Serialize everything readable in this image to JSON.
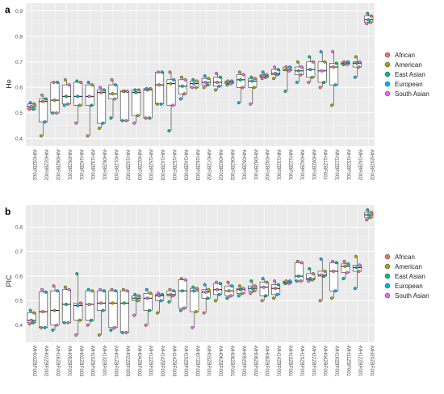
{
  "chart_data": [
    {
      "panel": "a",
      "type": "boxplot",
      "ylabel": "He",
      "ylim": [
        0.37,
        0.93
      ],
      "yticks": [
        0.4,
        0.5,
        0.6,
        0.7,
        0.8,
        0.9
      ],
      "grid": true,
      "legend_position": "right",
      "categories": [
        "MH03ZBF002",
        "MH02ZBF002",
        "MH08ZBF002",
        "MH05ZBF001",
        "MH14ZBF001",
        "MH13ZBF001",
        "MH06ZBF001",
        "MH01ZBF003",
        "MH10ZBF002",
        "MH02ZBF003",
        "MH15ZBF003",
        "MH14ZBF003",
        "MH15ZBF003",
        "MH14ZBF003",
        "MH16ZBF003",
        "MH07ZBF002",
        "MH09ZBF002",
        "MH06ZBF002",
        "MH05ZBF001",
        "MH08ZBF001",
        "MH03ZBF002",
        "MH13ZBF001",
        "MH12ZBF001",
        "MH04ZBF001",
        "MH09ZBF001",
        "MH11ZBF001",
        "MH12ZBF001",
        "MH15ZBF001",
        "MH16ZBF002",
        "MH20ZBF002"
      ],
      "boxes": [
        {
          "min": 0.515,
          "q1": 0.515,
          "median": 0.525,
          "q3": 0.535,
          "max": 0.54
        },
        {
          "min": 0.41,
          "q1": 0.465,
          "median": 0.545,
          "q3": 0.555,
          "max": 0.57
        },
        {
          "min": 0.5,
          "q1": 0.5,
          "median": 0.55,
          "q3": 0.62,
          "max": 0.62
        },
        {
          "min": 0.53,
          "q1": 0.535,
          "median": 0.565,
          "q3": 0.61,
          "max": 0.63
        },
        {
          "min": 0.46,
          "q1": 0.53,
          "median": 0.565,
          "q3": 0.62,
          "max": 0.625
        },
        {
          "min": 0.41,
          "q1": 0.53,
          "median": 0.565,
          "q3": 0.61,
          "max": 0.62
        },
        {
          "min": 0.44,
          "q1": 0.46,
          "median": 0.58,
          "q3": 0.59,
          "max": 0.6
        },
        {
          "min": 0.48,
          "q1": 0.555,
          "median": 0.575,
          "q3": 0.61,
          "max": 0.63
        },
        {
          "min": 0.47,
          "q1": 0.47,
          "median": 0.585,
          "q3": 0.585,
          "max": 0.585
        },
        {
          "min": 0.46,
          "q1": 0.49,
          "median": 0.58,
          "q3": 0.59,
          "max": 0.59
        },
        {
          "min": 0.48,
          "q1": 0.48,
          "median": 0.59,
          "q3": 0.595,
          "max": 0.595
        },
        {
          "min": 0.535,
          "q1": 0.535,
          "median": 0.61,
          "q3": 0.66,
          "max": 0.66
        },
        {
          "min": 0.43,
          "q1": 0.53,
          "median": 0.615,
          "q3": 0.63,
          "max": 0.66
        },
        {
          "min": 0.555,
          "q1": 0.575,
          "median": 0.605,
          "q3": 0.63,
          "max": 0.64
        },
        {
          "min": 0.6,
          "q1": 0.6,
          "median": 0.615,
          "q3": 0.625,
          "max": 0.63
        },
        {
          "min": 0.6,
          "q1": 0.61,
          "median": 0.62,
          "q3": 0.635,
          "max": 0.645
        },
        {
          "min": 0.59,
          "q1": 0.605,
          "median": 0.62,
          "q3": 0.64,
          "max": 0.655
        },
        {
          "min": 0.61,
          "q1": 0.615,
          "median": 0.62,
          "q3": 0.625,
          "max": 0.625
        },
        {
          "min": 0.54,
          "q1": 0.6,
          "median": 0.63,
          "q3": 0.65,
          "max": 0.66
        },
        {
          "min": 0.535,
          "q1": 0.6,
          "median": 0.625,
          "q3": 0.635,
          "max": 0.64
        },
        {
          "min": 0.635,
          "q1": 0.64,
          "median": 0.645,
          "q3": 0.65,
          "max": 0.66
        },
        {
          "min": 0.635,
          "q1": 0.65,
          "median": 0.655,
          "q3": 0.67,
          "max": 0.68
        },
        {
          "min": 0.585,
          "q1": 0.665,
          "median": 0.67,
          "q3": 0.68,
          "max": 0.68
        },
        {
          "min": 0.62,
          "q1": 0.65,
          "median": 0.665,
          "q3": 0.68,
          "max": 0.7
        },
        {
          "min": 0.62,
          "q1": 0.64,
          "median": 0.67,
          "q3": 0.7,
          "max": 0.72
        },
        {
          "min": 0.6,
          "q1": 0.62,
          "median": 0.665,
          "q3": 0.7,
          "max": 0.74
        },
        {
          "min": 0.53,
          "q1": 0.61,
          "median": 0.68,
          "q3": 0.695,
          "max": 0.74
        },
        {
          "min": 0.69,
          "q1": 0.69,
          "median": 0.695,
          "q3": 0.7,
          "max": 0.7
        },
        {
          "min": 0.64,
          "q1": 0.68,
          "median": 0.695,
          "q3": 0.7,
          "max": 0.72
        },
        {
          "min": 0.85,
          "q1": 0.855,
          "median": 0.865,
          "q3": 0.88,
          "max": 0.89
        }
      ]
    },
    {
      "panel": "b",
      "type": "boxplot",
      "ylabel": "PIC",
      "ylim": [
        0.33,
        0.89
      ],
      "yticks": [
        0.4,
        0.5,
        0.6,
        0.7,
        0.8
      ],
      "grid": true,
      "legend_position": "right",
      "categories": [
        "MH03ZBF002",
        "MH02ZBF002",
        "MH16ZBF002",
        "MH05ZBF001",
        "MH02ZBF003",
        "MH10ZBF002",
        "MH13ZBF001",
        "MH01ZBF003",
        "MH02ZBF003",
        "MH04ZBF002",
        "MH12ZBF001",
        "MH14ZBF003",
        "MH14ZBF003",
        "MH15ZBF003",
        "MH07ZBF002",
        "MH03ZBF001",
        "MH06ZBF002",
        "MH08ZBF001",
        "MH09ZBF002",
        "MH08ZBF002",
        "MH08ZBF002",
        "MH14ZBF001",
        "MH13ZBF001",
        "MH15ZBF001",
        "MH22ZBF001",
        "MH04ZBF001",
        "MH16ZBF001",
        "MH11ZBF001",
        "MH12ZBF001",
        "MH20ZBF001"
      ],
      "boxes": [
        {
          "min": 0.405,
          "q1": 0.41,
          "median": 0.42,
          "q3": 0.45,
          "max": 0.46
        },
        {
          "min": 0.39,
          "q1": 0.39,
          "median": 0.455,
          "q3": 0.535,
          "max": 0.545
        },
        {
          "min": 0.38,
          "q1": 0.4,
          "median": 0.46,
          "q3": 0.54,
          "max": 0.56
        },
        {
          "min": 0.41,
          "q1": 0.41,
          "median": 0.485,
          "q3": 0.545,
          "max": 0.555
        },
        {
          "min": 0.36,
          "q1": 0.42,
          "median": 0.48,
          "q3": 0.49,
          "max": 0.61
        },
        {
          "min": 0.4,
          "q1": 0.42,
          "median": 0.485,
          "q3": 0.54,
          "max": 0.545
        },
        {
          "min": 0.36,
          "q1": 0.46,
          "median": 0.49,
          "q3": 0.54,
          "max": 0.545
        },
        {
          "min": 0.38,
          "q1": 0.39,
          "median": 0.49,
          "q3": 0.54,
          "max": 0.545
        },
        {
          "min": 0.37,
          "q1": 0.37,
          "median": 0.49,
          "q3": 0.54,
          "max": 0.545
        },
        {
          "min": 0.44,
          "q1": 0.5,
          "median": 0.51,
          "q3": 0.52,
          "max": 0.525
        },
        {
          "min": 0.4,
          "q1": 0.46,
          "median": 0.51,
          "q3": 0.53,
          "max": 0.545
        },
        {
          "min": 0.45,
          "q1": 0.5,
          "median": 0.52,
          "q3": 0.525,
          "max": 0.53
        },
        {
          "min": 0.495,
          "q1": 0.52,
          "median": 0.525,
          "q3": 0.54,
          "max": 0.545
        },
        {
          "min": 0.46,
          "q1": 0.47,
          "median": 0.54,
          "q3": 0.585,
          "max": 0.59
        },
        {
          "min": 0.39,
          "q1": 0.455,
          "median": 0.54,
          "q3": 0.55,
          "max": 0.555
        },
        {
          "min": 0.45,
          "q1": 0.51,
          "median": 0.535,
          "q3": 0.545,
          "max": 0.565
        },
        {
          "min": 0.5,
          "q1": 0.525,
          "median": 0.545,
          "q3": 0.57,
          "max": 0.575
        },
        {
          "min": 0.51,
          "q1": 0.52,
          "median": 0.54,
          "q3": 0.56,
          "max": 0.575
        },
        {
          "min": 0.52,
          "q1": 0.53,
          "median": 0.545,
          "q3": 0.55,
          "max": 0.56
        },
        {
          "min": 0.53,
          "q1": 0.54,
          "median": 0.55,
          "q3": 0.56,
          "max": 0.58
        },
        {
          "min": 0.5,
          "q1": 0.52,
          "median": 0.555,
          "q3": 0.575,
          "max": 0.59
        },
        {
          "min": 0.51,
          "q1": 0.525,
          "median": 0.55,
          "q3": 0.565,
          "max": 0.58
        },
        {
          "min": 0.57,
          "q1": 0.57,
          "median": 0.575,
          "q3": 0.58,
          "max": 0.58
        },
        {
          "min": 0.58,
          "q1": 0.58,
          "median": 0.6,
          "q3": 0.655,
          "max": 0.66
        },
        {
          "min": 0.58,
          "q1": 0.585,
          "median": 0.59,
          "q3": 0.61,
          "max": 0.63
        },
        {
          "min": 0.5,
          "q1": 0.6,
          "median": 0.605,
          "q3": 0.62,
          "max": 0.67
        },
        {
          "min": 0.51,
          "q1": 0.54,
          "median": 0.62,
          "q3": 0.655,
          "max": 0.66
        },
        {
          "min": 0.59,
          "q1": 0.615,
          "median": 0.64,
          "q3": 0.65,
          "max": 0.66
        },
        {
          "min": 0.55,
          "q1": 0.62,
          "median": 0.635,
          "q3": 0.645,
          "max": 0.68
        },
        {
          "min": 0.83,
          "q1": 0.84,
          "median": 0.85,
          "q3": 0.86,
          "max": 0.87
        }
      ]
    }
  ],
  "legend": {
    "items": [
      {
        "label": "African",
        "color": "#e8756f"
      },
      {
        "label": "American",
        "color": "#a3a500"
      },
      {
        "label": "East Asian",
        "color": "#00bf7d"
      },
      {
        "label": "European",
        "color": "#00b0f6"
      },
      {
        "label": "South Asian",
        "color": "#e76bf3"
      }
    ]
  },
  "labels": {
    "panel_a": "a",
    "panel_b": "b",
    "ylabel_a": "He",
    "ylabel_b": "PIC"
  }
}
